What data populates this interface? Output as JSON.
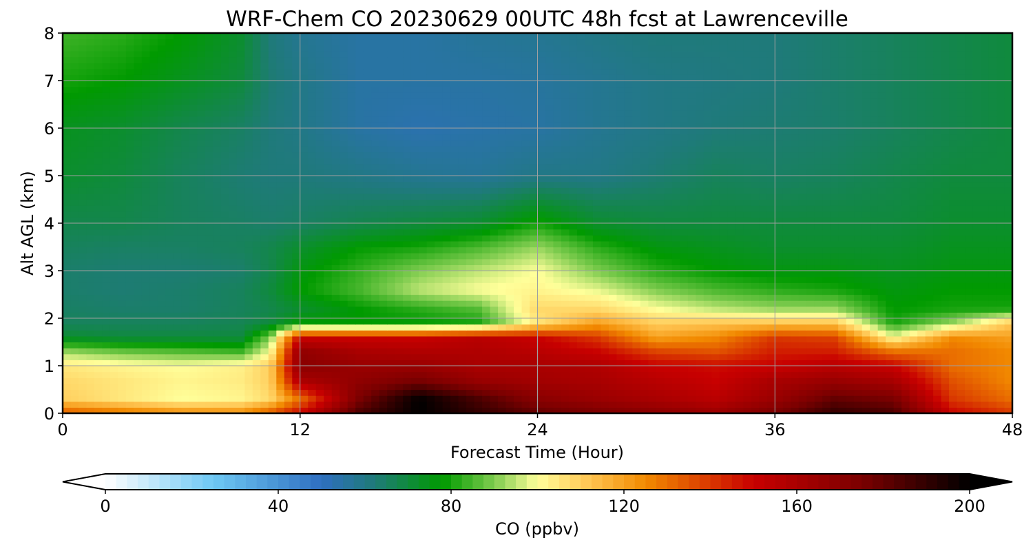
{
  "chart_data": {
    "type": "heatmap",
    "title": "WRF-Chem CO  20230629 00UTC 48h fcst at Lawrenceville",
    "xlabel": "Forecast Time (Hour)",
    "ylabel": "Alt AGL (km)",
    "xlim": [
      0,
      48
    ],
    "ylim": [
      0,
      8
    ],
    "x_ticks": [
      "0",
      "12",
      "24",
      "36",
      "48"
    ],
    "y_ticks": [
      "0",
      "1",
      "2",
      "3",
      "4",
      "5",
      "6",
      "7",
      "8"
    ],
    "grid": true,
    "colorbar": {
      "label": "CO  (ppbv)",
      "range": [
        0,
        200
      ],
      "ticks": [
        "0",
        "40",
        "80",
        "120",
        "160",
        "200"
      ],
      "extend": "both",
      "orientation": "horizontal",
      "stops": [
        {
          "value": 0,
          "color": "#ffffff"
        },
        {
          "value": 25,
          "color": "#6ec8f4"
        },
        {
          "value": 50,
          "color": "#2f6fc0"
        },
        {
          "value": 62,
          "color": "#1f7a7a"
        },
        {
          "value": 78,
          "color": "#009a00"
        },
        {
          "value": 90,
          "color": "#7fcc4f"
        },
        {
          "value": 100,
          "color": "#ffff9a"
        },
        {
          "value": 112,
          "color": "#ffc552"
        },
        {
          "value": 125,
          "color": "#f28a00"
        },
        {
          "value": 150,
          "color": "#c80000"
        },
        {
          "value": 175,
          "color": "#7a0000"
        },
        {
          "value": 200,
          "color": "#000000"
        }
      ]
    },
    "field": {
      "x": [
        0,
        3,
        6,
        9,
        10.5,
        12,
        15,
        18,
        21,
        24,
        27,
        30,
        33,
        36,
        39,
        42,
        45,
        48
      ],
      "y": [
        0,
        0.3,
        0.7,
        1.0,
        1.3,
        1.6,
        1.9,
        2.2,
        2.6,
        3.0,
        3.5,
        4.0,
        5.0,
        6.0,
        7.0,
        8.0
      ],
      "z": [
        [
          135,
          130,
          125,
          125,
          135,
          150,
          185,
          200,
          190,
          180,
          175,
          170,
          165,
          175,
          190,
          185,
          150,
          140
        ],
        [
          110,
          105,
          100,
          102,
          108,
          130,
          175,
          200,
          185,
          170,
          165,
          160,
          155,
          165,
          180,
          175,
          140,
          130
        ],
        [
          108,
          105,
          102,
          104,
          110,
          160,
          168,
          175,
          165,
          162,
          160,
          155,
          150,
          160,
          165,
          160,
          135,
          125
        ],
        [
          105,
          102,
          100,
          103,
          110,
          170,
          165,
          165,
          160,
          160,
          158,
          150,
          148,
          150,
          155,
          150,
          130,
          125
        ],
        [
          92,
          88,
          86,
          84,
          100,
          168,
          160,
          158,
          158,
          155,
          150,
          138,
          135,
          145,
          145,
          130,
          130,
          125
        ],
        [
          72,
          70,
          70,
          70,
          90,
          150,
          150,
          150,
          155,
          150,
          140,
          120,
          125,
          140,
          138,
          100,
          125,
          120
        ],
        [
          66,
          66,
          66,
          67,
          70,
          78,
          78,
          78,
          80,
          105,
          120,
          110,
          112,
          112,
          112,
          80,
          92,
          112
        ],
        [
          65,
          64,
          64,
          66,
          68,
          72,
          78,
          82,
          86,
          108,
          108,
          100,
          95,
          92,
          92,
          78,
          80,
          80
        ],
        [
          64,
          63,
          64,
          66,
          70,
          78,
          85,
          95,
          100,
          102,
          98,
          90,
          85,
          82,
          80,
          76,
          78,
          78
        ],
        [
          64,
          63,
          63,
          64,
          68,
          76,
          83,
          90,
          95,
          100,
          90,
          82,
          78,
          76,
          76,
          74,
          76,
          76
        ],
        [
          66,
          65,
          65,
          66,
          68,
          72,
          78,
          80,
          85,
          92,
          82,
          76,
          74,
          72,
          72,
          72,
          74,
          74
        ],
        [
          68,
          68,
          66,
          65,
          64,
          65,
          68,
          70,
          72,
          80,
          72,
          70,
          70,
          70,
          70,
          70,
          72,
          72
        ],
        [
          72,
          70,
          66,
          63,
          62,
          62,
          60,
          58,
          57,
          60,
          60,
          63,
          66,
          65,
          66,
          68,
          70,
          70
        ],
        [
          74,
          72,
          68,
          65,
          62,
          60,
          55,
          53,
          54,
          55,
          58,
          60,
          62,
          63,
          64,
          66,
          68,
          70
        ],
        [
          80,
          78,
          74,
          70,
          63,
          60,
          55,
          55,
          55,
          56,
          58,
          60,
          61,
          62,
          64,
          66,
          68,
          70
        ],
        [
          84,
          82,
          78,
          72,
          62,
          58,
          55,
          55,
          57,
          58,
          60,
          62,
          62,
          62,
          64,
          66,
          68,
          70
        ]
      ]
    }
  }
}
